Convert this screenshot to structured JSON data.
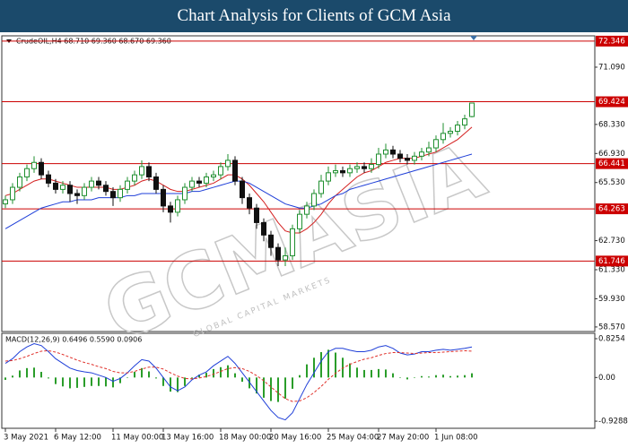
{
  "header": {
    "title": "Chart Analysis for Clients of GCM Asia"
  },
  "chart_data": [
    {
      "type": "candlestick",
      "symbol_label": "CrudeOIL,H4 68.710 69.360 68.670 69.360",
      "watermark": "GCMASIA",
      "watermark_sub": "GLOBAL CAPITAL MARKETS",
      "categories": [
        "3 May 2021",
        null,
        null,
        null,
        null,
        null,
        null,
        "6 May 12:00",
        null,
        null,
        null,
        null,
        null,
        null,
        null,
        "11 May 00:00",
        null,
        null,
        null,
        null,
        null,
        null,
        "13 May 16:00",
        null,
        null,
        null,
        null,
        null,
        null,
        null,
        "18 May 00:00",
        null,
        null,
        null,
        null,
        null,
        null,
        "20 May 16:00",
        null,
        null,
        null,
        null,
        null,
        null,
        null,
        "25 May 04:00",
        null,
        null,
        null,
        null,
        null,
        null,
        "27 May 20:00",
        null,
        null,
        null,
        null,
        null,
        null,
        null,
        "1 Jun 08:00",
        null,
        null,
        null,
        null,
        null
      ],
      "open": [
        64.5,
        64.7,
        65.3,
        65.8,
        66.2,
        66.5,
        65.9,
        65.5,
        65.2,
        65.4,
        65.0,
        64.9,
        65.3,
        65.6,
        65.4,
        65.1,
        64.8,
        65.2,
        65.6,
        65.9,
        66.3,
        65.8,
        65.2,
        64.4,
        64.1,
        64.7,
        65.3,
        65.6,
        65.5,
        65.8,
        65.9,
        66.3,
        66.6,
        65.6,
        64.8,
        64.3,
        63.6,
        63.0,
        62.4,
        61.8,
        62.0,
        63.3,
        64.0,
        64.4,
        65.0,
        65.6,
        66.0,
        66.1,
        66.0,
        66.2,
        66.3,
        66.2,
        66.4,
        66.9,
        67.1,
        66.9,
        66.7,
        66.6,
        66.8,
        67.0,
        67.2,
        67.6,
        67.9,
        68.0,
        68.3,
        68.71
      ],
      "high": [
        64.9,
        65.5,
        66.0,
        66.4,
        66.8,
        66.7,
        66.1,
        65.7,
        65.6,
        65.6,
        65.2,
        65.5,
        65.8,
        65.8,
        65.6,
        65.3,
        65.4,
        65.8,
        66.1,
        66.6,
        66.5,
        66.0,
        65.4,
        64.6,
        64.9,
        65.5,
        65.8,
        65.8,
        66.0,
        66.1,
        66.5,
        66.9,
        66.8,
        65.8,
        65.0,
        64.5,
        63.8,
        63.2,
        62.6,
        62.4,
        63.5,
        64.2,
        64.6,
        65.2,
        65.9,
        66.3,
        66.4,
        66.3,
        66.4,
        66.5,
        66.5,
        66.7,
        67.2,
        67.4,
        67.3,
        67.1,
        66.9,
        67.0,
        67.2,
        67.5,
        67.8,
        68.4,
        68.2,
        68.5,
        68.8,
        69.36
      ],
      "low": [
        64.3,
        64.5,
        65.1,
        65.6,
        66.0,
        65.7,
        65.3,
        65.0,
        65.0,
        64.6,
        64.5,
        64.7,
        65.1,
        65.2,
        64.9,
        64.4,
        64.6,
        65.0,
        65.4,
        65.7,
        65.6,
        65.0,
        64.1,
        63.6,
        63.9,
        64.5,
        65.1,
        65.3,
        65.3,
        65.6,
        65.7,
        66.1,
        65.4,
        64.5,
        64.0,
        63.3,
        62.7,
        62.0,
        61.5,
        61.5,
        61.8,
        63.1,
        63.8,
        64.2,
        64.8,
        65.4,
        65.8,
        65.8,
        65.8,
        66.0,
        66.0,
        66.0,
        66.2,
        66.7,
        66.7,
        66.5,
        66.4,
        66.4,
        66.6,
        66.8,
        67.0,
        67.4,
        67.7,
        67.8,
        68.1,
        68.67
      ],
      "close": [
        64.7,
        65.3,
        65.8,
        66.2,
        66.5,
        65.9,
        65.5,
        65.2,
        65.4,
        65.0,
        64.9,
        65.3,
        65.6,
        65.4,
        65.1,
        64.8,
        65.2,
        65.6,
        65.9,
        66.3,
        65.8,
        65.2,
        64.4,
        64.1,
        64.7,
        65.3,
        65.6,
        65.5,
        65.8,
        65.9,
        66.3,
        66.6,
        65.6,
        64.8,
        64.3,
        63.6,
        63.0,
        62.4,
        61.8,
        62.0,
        63.3,
        64.0,
        64.4,
        65.0,
        65.6,
        66.0,
        66.1,
        66.0,
        66.2,
        66.3,
        66.2,
        66.4,
        66.9,
        67.1,
        66.9,
        66.7,
        66.6,
        66.8,
        67.0,
        67.2,
        67.6,
        67.9,
        68.0,
        68.3,
        68.6,
        69.36
      ],
      "up_color": "#1f8f2f",
      "down_color": "#111111",
      "series": [
        {
          "color": "#d42020",
          "values": [
            64.9,
            65.0,
            65.2,
            65.4,
            65.6,
            65.7,
            65.7,
            65.6,
            65.5,
            65.4,
            65.3,
            65.3,
            65.3,
            65.3,
            65.3,
            65.2,
            65.2,
            65.3,
            65.4,
            65.6,
            65.7,
            65.6,
            65.4,
            65.2,
            65.1,
            65.1,
            65.2,
            65.3,
            65.4,
            65.5,
            65.7,
            65.9,
            65.9,
            65.7,
            65.4,
            65.0,
            64.6,
            64.1,
            63.6,
            63.2,
            63.1,
            63.1,
            63.3,
            63.6,
            64.0,
            64.5,
            64.9,
            65.2,
            65.5,
            65.8,
            66.0,
            66.1,
            66.3,
            66.5,
            66.6,
            66.7,
            66.7,
            66.7,
            66.8,
            66.9,
            67.0,
            67.2,
            67.4,
            67.6,
            67.9,
            68.2
          ]
        },
        {
          "color": "#1f3fd8",
          "values": [
            63.3,
            63.5,
            63.7,
            63.9,
            64.1,
            64.3,
            64.4,
            64.5,
            64.6,
            64.6,
            64.7,
            64.7,
            64.7,
            64.8,
            64.8,
            64.8,
            64.8,
            64.9,
            64.9,
            65.0,
            65.0,
            65.0,
            65.0,
            65.0,
            65.0,
            65.0,
            65.1,
            65.1,
            65.2,
            65.3,
            65.4,
            65.5,
            65.6,
            65.6,
            65.5,
            65.3,
            65.1,
            64.9,
            64.7,
            64.5,
            64.4,
            64.3,
            64.3,
            64.4,
            64.5,
            64.7,
            64.9,
            65.0,
            65.2,
            65.3,
            65.4,
            65.5,
            65.6,
            65.7,
            65.8,
            65.9,
            66.0,
            66.1,
            66.2,
            66.3,
            66.4,
            66.5,
            66.6,
            66.7,
            66.8,
            66.9
          ]
        }
      ],
      "levels": [
        72.346,
        69.424,
        66.441,
        64.263,
        61.746
      ],
      "level_color": "#cc0000",
      "ylim": [
        58.35,
        72.6
      ],
      "yticks": [
        {
          "value": 58.57,
          "label": "58.570"
        },
        {
          "value": 59.93,
          "label": "59.930"
        },
        {
          "value": 61.33,
          "label": "61.330"
        },
        {
          "value": 62.73,
          "label": "62.730"
        },
        {
          "value": 65.53,
          "label": "65.530"
        },
        {
          "value": 66.93,
          "label": "66.930"
        },
        {
          "value": 68.33,
          "label": "68.330"
        },
        {
          "value": 71.09,
          "label": "71.090"
        }
      ]
    },
    {
      "type": "macd",
      "label": "MACD(12,26,9) 0.6496 0.5590 0.0906",
      "series": [
        {
          "color": "#1f3fd8",
          "line_style": "solid",
          "values": [
            0.3,
            0.4,
            0.55,
            0.65,
            0.72,
            0.68,
            0.55,
            0.4,
            0.3,
            0.2,
            0.15,
            0.12,
            0.1,
            0.05,
            0.0,
            -0.08,
            -0.02,
            0.1,
            0.25,
            0.38,
            0.35,
            0.2,
            0.0,
            -0.2,
            -0.28,
            -0.2,
            -0.05,
            0.05,
            0.12,
            0.25,
            0.35,
            0.45,
            0.3,
            0.1,
            -0.1,
            -0.3,
            -0.5,
            -0.7,
            -0.85,
            -0.9,
            -0.75,
            -0.45,
            -0.15,
            0.1,
            0.35,
            0.55,
            0.62,
            0.62,
            0.58,
            0.55,
            0.55,
            0.58,
            0.65,
            0.68,
            0.62,
            0.52,
            0.48,
            0.5,
            0.55,
            0.55,
            0.58,
            0.6,
            0.58,
            0.6,
            0.62,
            0.65
          ]
        },
        {
          "color": "#e0302a",
          "line_style": "dashed",
          "values": [
            0.35,
            0.36,
            0.4,
            0.45,
            0.51,
            0.56,
            0.57,
            0.54,
            0.49,
            0.43,
            0.37,
            0.32,
            0.28,
            0.23,
            0.19,
            0.13,
            0.1,
            0.1,
            0.13,
            0.18,
            0.22,
            0.22,
            0.18,
            0.1,
            0.03,
            -0.02,
            -0.03,
            -0.01,
            0.02,
            0.07,
            0.13,
            0.19,
            0.21,
            0.19,
            0.13,
            0.04,
            -0.07,
            -0.2,
            -0.33,
            -0.45,
            -0.51,
            -0.5,
            -0.43,
            -0.32,
            -0.19,
            -0.04,
            0.09,
            0.2,
            0.28,
            0.34,
            0.39,
            0.42,
            0.47,
            0.51,
            0.53,
            0.53,
            0.52,
            0.51,
            0.52,
            0.53,
            0.53,
            0.54,
            0.55,
            0.56,
            0.57,
            0.56
          ]
        }
      ],
      "histogram": {
        "color": "#2a9d2a",
        "values": [
          -0.05,
          0.04,
          0.15,
          0.2,
          0.21,
          0.12,
          -0.02,
          -0.14,
          -0.19,
          -0.23,
          -0.22,
          -0.2,
          -0.18,
          -0.18,
          -0.19,
          -0.21,
          -0.12,
          0.0,
          0.12,
          0.2,
          0.13,
          -0.02,
          -0.18,
          -0.3,
          -0.31,
          -0.18,
          -0.02,
          0.06,
          0.1,
          0.18,
          0.22,
          0.26,
          0.09,
          -0.09,
          -0.23,
          -0.34,
          -0.43,
          -0.5,
          -0.52,
          -0.45,
          -0.24,
          0.05,
          0.28,
          0.42,
          0.54,
          0.59,
          0.53,
          0.42,
          0.3,
          0.21,
          0.16,
          0.16,
          0.18,
          0.17,
          0.09,
          -0.01,
          -0.04,
          -0.01,
          0.03,
          0.02,
          0.05,
          0.06,
          0.03,
          0.04,
          0.05,
          0.09
        ]
      },
      "ylim": [
        -1.08,
        0.94
      ],
      "yticks": [
        0.8254,
        {
          "value": 0,
          "label": "0.00"
        },
        -0.9288
      ]
    }
  ]
}
